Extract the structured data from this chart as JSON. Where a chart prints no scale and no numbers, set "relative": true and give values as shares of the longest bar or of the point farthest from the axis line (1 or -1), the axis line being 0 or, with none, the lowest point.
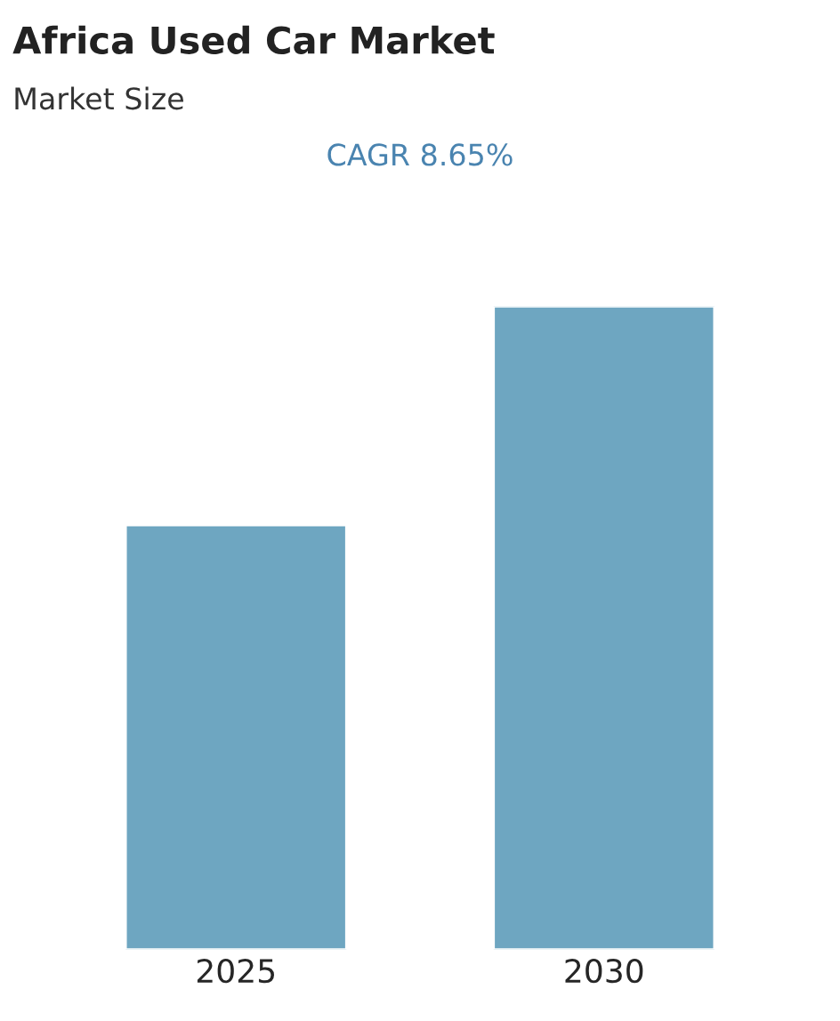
{
  "chart_data": {
    "type": "bar",
    "title": "Africa Used Car Market",
    "subtitle": "Market Size",
    "annotations": [
      "CAGR 8.65%"
    ],
    "categories": [
      "2025",
      "2030"
    ],
    "values": [
      0.66,
      1
    ],
    "color": "#6ea6c1",
    "relative": true,
    "grid": false,
    "legend": false
  }
}
